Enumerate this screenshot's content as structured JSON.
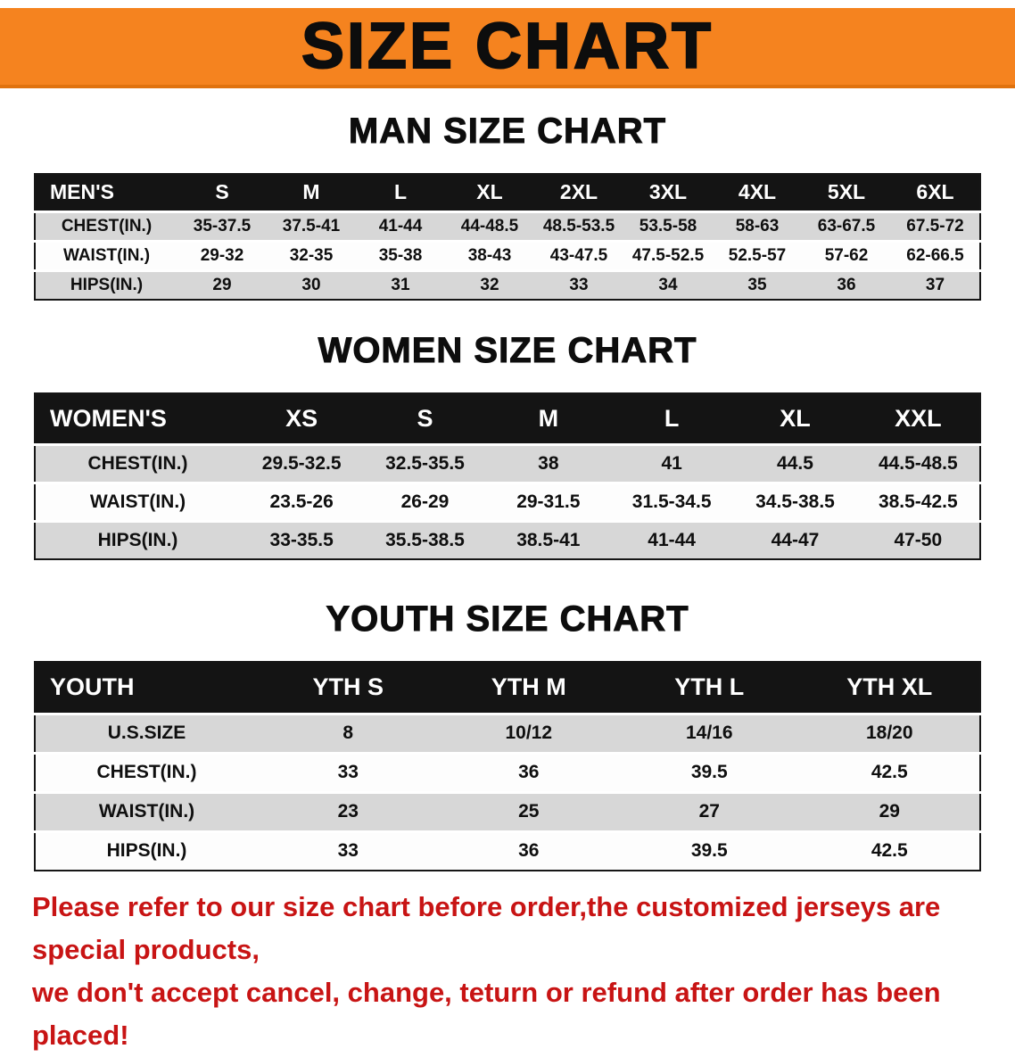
{
  "banner": {
    "title": "SIZE CHART"
  },
  "colors": {
    "banner_orange": "#f5831f",
    "table_header_black": "#141414",
    "row_shade_gray": "#d7d7d7",
    "disclaimer_red": "#c81414"
  },
  "tables": {
    "men": {
      "heading": "MAN SIZE CHART",
      "header": [
        "MEN'S",
        "S",
        "M",
        "L",
        "XL",
        "2XL",
        "3XL",
        "4XL",
        "5XL",
        "6XL"
      ],
      "rows": [
        {
          "label": "CHEST(IN.)",
          "values": [
            "35-37.5",
            "37.5-41",
            "41-44",
            "44-48.5",
            "48.5-53.5",
            "53.5-58",
            "58-63",
            "63-67.5",
            "67.5-72"
          ]
        },
        {
          "label": "WAIST(IN.)",
          "values": [
            "29-32",
            "32-35",
            "35-38",
            "38-43",
            "43-47.5",
            "47.5-52.5",
            "52.5-57",
            "57-62",
            "62-66.5"
          ]
        },
        {
          "label": "HIPS(IN.)",
          "values": [
            "29",
            "30",
            "31",
            "32",
            "33",
            "34",
            "35",
            "36",
            "37"
          ]
        }
      ]
    },
    "women": {
      "heading": "WOMEN SIZE CHART",
      "header": [
        "WOMEN'S",
        "XS",
        "S",
        "M",
        "L",
        "XL",
        "XXL"
      ],
      "rows": [
        {
          "label": "CHEST(IN.)",
          "values": [
            "29.5-32.5",
            "32.5-35.5",
            "38",
            "41",
            "44.5",
            "44.5-48.5"
          ]
        },
        {
          "label": "WAIST(IN.)",
          "values": [
            "23.5-26",
            "26-29",
            "29-31.5",
            "31.5-34.5",
            "34.5-38.5",
            "38.5-42.5"
          ]
        },
        {
          "label": "HIPS(IN.)",
          "values": [
            "33-35.5",
            "35.5-38.5",
            "38.5-41",
            "41-44",
            "44-47",
            "47-50"
          ]
        }
      ]
    },
    "youth": {
      "heading": "YOUTH SIZE CHART",
      "header": [
        "YOUTH",
        "YTH S",
        "YTH M",
        "YTH L",
        "YTH XL"
      ],
      "rows": [
        {
          "label": "U.S.SIZE",
          "values": [
            "8",
            "10/12",
            "14/16",
            "18/20"
          ]
        },
        {
          "label": "CHEST(IN.)",
          "values": [
            "33",
            "36",
            "39.5",
            "42.5"
          ]
        },
        {
          "label": "WAIST(IN.)",
          "values": [
            "23",
            "25",
            "27",
            "29"
          ]
        },
        {
          "label": "HIPS(IN.)",
          "values": [
            "33",
            "36",
            "39.5",
            "42.5"
          ]
        }
      ]
    }
  },
  "disclaimer": {
    "line1": "Please refer to our size chart before order,the customized jerseys are special products,",
    "line2": "we don't accept cancel, change, teturn or refund after order has been placed!"
  }
}
